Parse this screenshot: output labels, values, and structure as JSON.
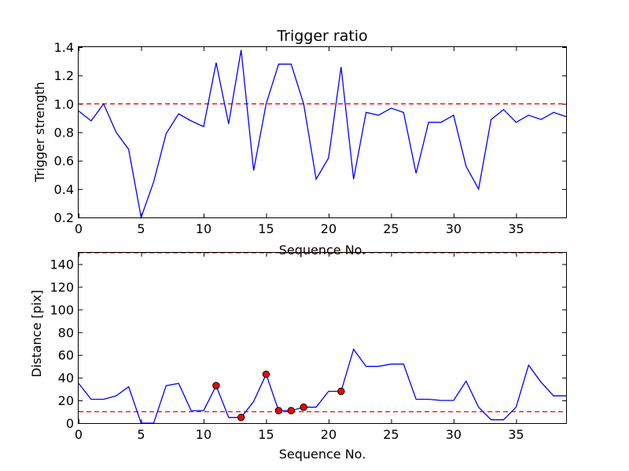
{
  "chart_data": [
    {
      "type": "line",
      "title": "Trigger ratio",
      "xlabel": "Sequence No.",
      "ylabel": "Trigger strength",
      "xlim": [
        0,
        39
      ],
      "ylim": [
        0.2,
        1.4
      ],
      "xticks": [
        0,
        5,
        10,
        15,
        20,
        25,
        30,
        35
      ],
      "xtick_labels": [
        "0",
        "5",
        "10",
        "15",
        "20",
        "25",
        "30",
        "35"
      ],
      "yticks": [
        0.2,
        0.4,
        0.6,
        0.8,
        1.0,
        1.2,
        1.4
      ],
      "ytick_labels": [
        "0.2",
        "0.4",
        "0.6",
        "0.8",
        "1.0",
        "1.2",
        "1.4"
      ],
      "reference_lines": [
        {
          "y": 1.0,
          "color": "#ff0000",
          "style": "dashed"
        }
      ],
      "series": [
        {
          "name": "trigger strength",
          "color": "#0000ff",
          "x": [
            0,
            1,
            2,
            3,
            4,
            5,
            6,
            7,
            8,
            9,
            10,
            11,
            12,
            13,
            14,
            15,
            16,
            17,
            18,
            19,
            20,
            21,
            22,
            23,
            24,
            25,
            26,
            27,
            28,
            29,
            30,
            31,
            32,
            33,
            34,
            35,
            36,
            37,
            38,
            39
          ],
          "values": [
            0.95,
            0.88,
            1.0,
            0.8,
            0.68,
            0.2,
            0.45,
            0.79,
            0.93,
            0.88,
            0.84,
            1.29,
            0.86,
            1.38,
            0.53,
            1.0,
            1.28,
            1.28,
            1.0,
            0.47,
            0.62,
            1.26,
            0.47,
            0.94,
            0.92,
            0.97,
            0.94,
            0.51,
            0.87,
            0.87,
            0.92,
            0.56,
            0.4,
            0.89,
            0.96,
            0.87,
            0.92,
            0.89,
            0.94,
            0.91
          ]
        }
      ]
    },
    {
      "type": "line",
      "title": "",
      "xlabel": "Sequence No.",
      "ylabel": "Distance [pix]",
      "xlim": [
        0,
        39
      ],
      "ylim": [
        0,
        150
      ],
      "xticks": [
        0,
        5,
        10,
        15,
        20,
        25,
        30,
        35
      ],
      "xtick_labels": [
        "0",
        "5",
        "10",
        "15",
        "20",
        "25",
        "30",
        "35"
      ],
      "yticks": [
        0,
        20,
        40,
        60,
        80,
        100,
        120,
        140
      ],
      "ytick_labels": [
        "0",
        "20",
        "40",
        "60",
        "80",
        "100",
        "120",
        "140"
      ],
      "reference_lines": [
        {
          "y": 150,
          "color": "#ff0000",
          "style": "dashed"
        },
        {
          "y": 10,
          "color": "#ff0000",
          "style": "dashed"
        }
      ],
      "series": [
        {
          "name": "distance",
          "color": "#0000ff",
          "x": [
            0,
            1,
            2,
            3,
            4,
            5,
            6,
            7,
            8,
            9,
            10,
            11,
            12,
            13,
            14,
            15,
            16,
            17,
            18,
            19,
            20,
            21,
            22,
            23,
            24,
            25,
            26,
            27,
            28,
            29,
            30,
            31,
            32,
            33,
            34,
            35,
            36,
            37,
            38,
            39
          ],
          "values": [
            35,
            21,
            21,
            24,
            32,
            0,
            0,
            33,
            35,
            11,
            11,
            33,
            5,
            5,
            19,
            43,
            11,
            11,
            14,
            14,
            28,
            28,
            65,
            50,
            50,
            52,
            52,
            21,
            21,
            20,
            20,
            37,
            14,
            3,
            3,
            14,
            51,
            36,
            24,
            24
          ]
        }
      ],
      "highlight_points": {
        "color": "#ff0000",
        "x": [
          11,
          13,
          15,
          16,
          17,
          18,
          21
        ],
        "values": [
          33,
          5,
          43,
          11,
          11,
          14,
          28
        ]
      }
    }
  ]
}
